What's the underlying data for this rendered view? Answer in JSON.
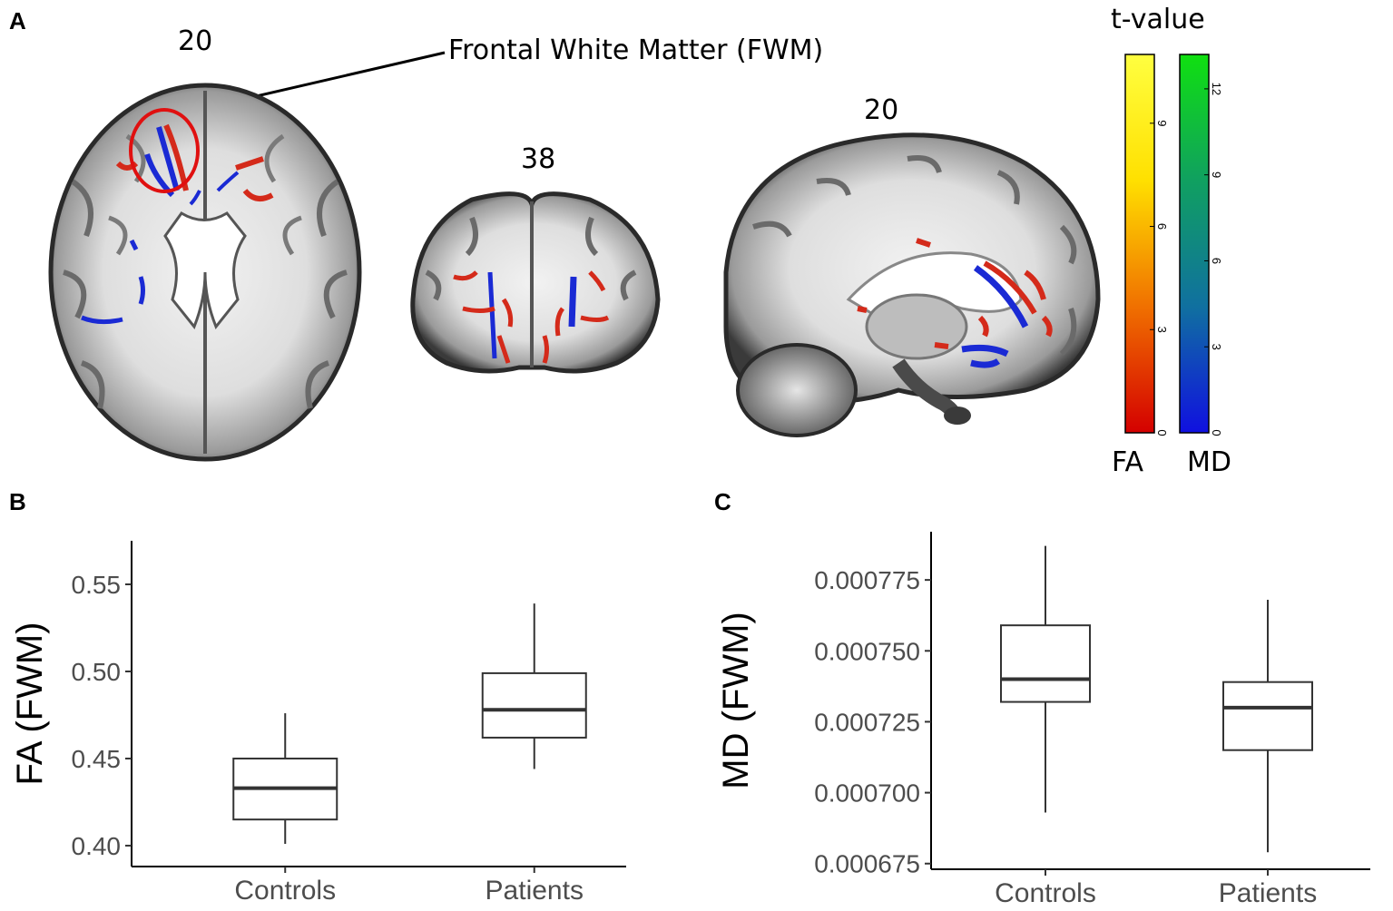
{
  "panel_a": {
    "letter": "A",
    "axial_slice": "20",
    "coronal_slice": "38",
    "sagittal_slice": "20",
    "callout_label": "Frontal White Matter (FWM)",
    "colorbar_title": "t-value",
    "colorbars": [
      {
        "label": "FA",
        "ticks": [
          "0",
          "3",
          "6",
          "9"
        ],
        "max": 11,
        "colors": [
          "#d40000",
          "#f07000",
          "#ffe000",
          "#ffff40"
        ]
      },
      {
        "label": "MD",
        "ticks": [
          "0",
          "3",
          "6",
          "9",
          "12"
        ],
        "max": 13.2,
        "colors": [
          "#1010e0",
          "#1070a0",
          "#10a060",
          "#10e010"
        ]
      }
    ],
    "colors": {
      "fa_overlay": "#d42a1a",
      "md_overlay": "#1a2ad4",
      "roi_circle": "#e01010"
    }
  },
  "chart_data": [
    {
      "panel": "B",
      "type": "box",
      "categories": [
        "Controls",
        "Patients"
      ],
      "boxes": [
        {
          "category": "Controls",
          "lower_whisker": 0.401,
          "q1": 0.415,
          "median": 0.433,
          "q3": 0.45,
          "upper_whisker": 0.476
        },
        {
          "category": "Patients",
          "lower_whisker": 0.444,
          "q1": 0.462,
          "median": 0.478,
          "q3": 0.499,
          "upper_whisker": 0.539
        }
      ],
      "ylabel": "FA (FWM)",
      "xlabel": "",
      "yticks": [
        "0.40",
        "0.45",
        "0.50",
        "0.55"
      ],
      "ytick_values": [
        0.4,
        0.45,
        0.5,
        0.55
      ],
      "ylim": [
        0.388,
        0.575
      ],
      "grid": false
    },
    {
      "panel": "C",
      "type": "box",
      "categories": [
        "Controls",
        "Patients"
      ],
      "boxes": [
        {
          "category": "Controls",
          "lower_whisker": 0.000693,
          "q1": 0.000732,
          "median": 0.00074,
          "q3": 0.000759,
          "upper_whisker": 0.000787
        },
        {
          "category": "Patients",
          "lower_whisker": 0.000679,
          "q1": 0.000715,
          "median": 0.00073,
          "q3": 0.000739,
          "upper_whisker": 0.000768
        }
      ],
      "ylabel": "MD (FWM)",
      "xlabel": "",
      "yticks": [
        "0.000675",
        "0.000700",
        "0.000725",
        "0.000750",
        "0.000775"
      ],
      "ytick_values": [
        0.000675,
        0.0007,
        0.000725,
        0.00075,
        0.000775
      ],
      "ylim": [
        0.000673,
        0.000792
      ],
      "grid": false
    }
  ]
}
